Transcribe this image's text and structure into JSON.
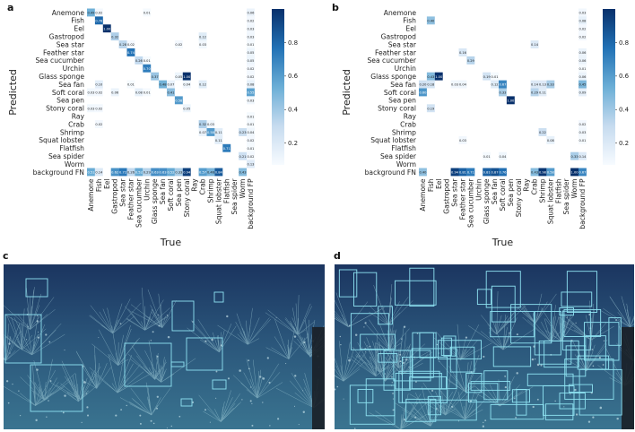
{
  "panels": {
    "a": "a",
    "b": "b",
    "c": "c",
    "d": "d"
  },
  "chart_data": [
    {
      "type": "heatmap",
      "panel": "a",
      "xlabel": "True",
      "ylabel": "Predicted",
      "row_labels": [
        "Anemone",
        "Fish",
        "Eel",
        "Gastropod",
        "Sea star",
        "Feather star",
        "Sea cucumber",
        "Urchin",
        "Glass sponge",
        "Sea fan",
        "Soft coral",
        "Sea pen",
        "Stony coral",
        "Ray",
        "Crab",
        "Shrimp",
        "Squat lobster",
        "Flatfish",
        "Sea spider",
        "Worm",
        "background FN"
      ],
      "col_labels": [
        "Anemone",
        "Fish",
        "Eel",
        "Gastropod",
        "Sea star",
        "Feather star",
        "Sea cucumber",
        "Urchin",
        "Glass sponge",
        "Sea fan",
        "Soft coral",
        "Sea pen",
        "Stony coral",
        "Ray",
        "Crab",
        "Shrimp",
        "Squat lobster",
        "Flatfish",
        "Sea spider",
        "Worm",
        "background FP"
      ],
      "colorbar_ticks": [
        0.2,
        0.4,
        0.6,
        0.8
      ],
      "colorscale": [
        "#f7fbff",
        "#08306b"
      ],
      "cells": [
        [
          0,
          0,
          0.49
        ],
        [
          0,
          1,
          0.02
        ],
        [
          0,
          7,
          0.01
        ],
        [
          0,
          20,
          0.06
        ],
        [
          1,
          1,
          0.78
        ],
        [
          1,
          20,
          0.02
        ],
        [
          2,
          2,
          1.0
        ],
        [
          2,
          20,
          0.03
        ],
        [
          3,
          3,
          0.32
        ],
        [
          3,
          14,
          0.12
        ],
        [
          3,
          20,
          0.03
        ],
        [
          4,
          4,
          0.28
        ],
        [
          4,
          5,
          0.02
        ],
        [
          4,
          11,
          0.02
        ],
        [
          4,
          14,
          0.03
        ],
        [
          4,
          20,
          0.01
        ],
        [
          5,
          5,
          0.74
        ],
        [
          5,
          20,
          0.05
        ],
        [
          6,
          6,
          0.26
        ],
        [
          6,
          7,
          0.01
        ],
        [
          6,
          20,
          0.05
        ],
        [
          7,
          7,
          0.7
        ],
        [
          7,
          20,
          0.02
        ],
        [
          8,
          8,
          0.37
        ],
        [
          8,
          11,
          0.05
        ],
        [
          8,
          12,
          1.0
        ],
        [
          8,
          20,
          0.02
        ],
        [
          9,
          1,
          0.1
        ],
        [
          9,
          5,
          0.01
        ],
        [
          9,
          9,
          0.48
        ],
        [
          9,
          10,
          0.07
        ],
        [
          9,
          12,
          0.04
        ],
        [
          9,
          14,
          0.12
        ],
        [
          9,
          20,
          0.08
        ],
        [
          10,
          0,
          0.03
        ],
        [
          10,
          1,
          0.02
        ],
        [
          10,
          3,
          0.06
        ],
        [
          10,
          6,
          0.08
        ],
        [
          10,
          7,
          0.01
        ],
        [
          10,
          10,
          0.41
        ],
        [
          10,
          20,
          0.55
        ],
        [
          11,
          11,
          0.58
        ],
        [
          11,
          20,
          0.03
        ],
        [
          12,
          0,
          0.03
        ],
        [
          12,
          1,
          0.02
        ],
        [
          12,
          12,
          0.05
        ],
        [
          13,
          20,
          0.01
        ],
        [
          14,
          1,
          0.02
        ],
        [
          14,
          14,
          0.32
        ],
        [
          14,
          15,
          0.03
        ],
        [
          14,
          20,
          0.01
        ],
        [
          15,
          14,
          0.07
        ],
        [
          15,
          15,
          0.58
        ],
        [
          15,
          16,
          0.11
        ],
        [
          15,
          19,
          0.23
        ],
        [
          15,
          20,
          0.04
        ],
        [
          16,
          16,
          0.11
        ],
        [
          16,
          20,
          0.02
        ],
        [
          17,
          17,
          0.71
        ],
        [
          17,
          20,
          0.01
        ],
        [
          18,
          19,
          0.21
        ],
        [
          18,
          20,
          0.02
        ],
        [
          19,
          20,
          0.13
        ],
        [
          20,
          0,
          0.51
        ],
        [
          20,
          1,
          0.14
        ],
        [
          20,
          3,
          0.62
        ],
        [
          20,
          4,
          0.72
        ],
        [
          20,
          5,
          0.26
        ],
        [
          20,
          6,
          0.52
        ],
        [
          20,
          7,
          0.29
        ],
        [
          20,
          8,
          0.63
        ],
        [
          20,
          9,
          0.63
        ],
        [
          20,
          10,
          0.52
        ],
        [
          20,
          11,
          0.33
        ],
        [
          20,
          12,
          0.94
        ],
        [
          20,
          14,
          0.57
        ],
        [
          20,
          15,
          0.46
        ],
        [
          20,
          16,
          0.84
        ],
        [
          20,
          19,
          0.43
        ]
      ]
    },
    {
      "type": "heatmap",
      "panel": "b",
      "xlabel": "True",
      "ylabel": "Predicted",
      "row_labels": [
        "Anemone",
        "Fish",
        "Eel",
        "Gastropod",
        "Sea star",
        "Feather star",
        "Sea cucumber",
        "Urchin",
        "Glass sponge",
        "Sea fan",
        "Soft coral",
        "Sea pen",
        "Stony coral",
        "Ray",
        "Crab",
        "Shrimp",
        "Squat lobster",
        "Flatfish",
        "Sea spider",
        "Worm",
        "background FN"
      ],
      "col_labels": [
        "Anemone",
        "Fish",
        "Eel",
        "Gastropod",
        "Sea star",
        "Feather star",
        "Sea cucumber",
        "Urchin",
        "Glass sponge",
        "Sea fan",
        "Soft coral",
        "Sea pen",
        "Stony coral",
        "Ray",
        "Crab",
        "Shrimp",
        "Squat lobster",
        "Flatfish",
        "Sea spider",
        "Worm",
        "background FP"
      ],
      "colorbar_ticks": [
        0.2,
        0.4,
        0.6,
        0.8
      ],
      "colorscale": [
        "#f7fbff",
        "#08306b"
      ],
      "cells": [
        [
          0,
          20,
          0.03
        ],
        [
          1,
          1,
          0.4
        ],
        [
          1,
          20,
          0.08
        ],
        [
          2,
          20,
          0.02
        ],
        [
          3,
          20,
          0.02
        ],
        [
          4,
          14,
          0.14
        ],
        [
          5,
          5,
          0.16
        ],
        [
          5,
          20,
          0.06
        ],
        [
          6,
          6,
          0.29
        ],
        [
          6,
          20,
          0.06
        ],
        [
          7,
          20,
          0.01
        ],
        [
          8,
          1,
          0.43
        ],
        [
          8,
          2,
          1.0
        ],
        [
          8,
          8,
          0.19
        ],
        [
          8,
          9,
          0.01
        ],
        [
          8,
          20,
          0.06
        ],
        [
          9,
          0,
          0.2
        ],
        [
          9,
          1,
          0.18
        ],
        [
          9,
          4,
          0.03
        ],
        [
          9,
          5,
          0.04
        ],
        [
          9,
          9,
          0.12
        ],
        [
          9,
          10,
          0.67
        ],
        [
          9,
          14,
          0.14
        ],
        [
          9,
          15,
          0.13
        ],
        [
          9,
          16,
          0.33
        ],
        [
          9,
          20,
          0.45
        ],
        [
          10,
          0,
          0.6
        ],
        [
          10,
          10,
          0.33
        ],
        [
          10,
          14,
          0.29
        ],
        [
          10,
          15,
          0.11
        ],
        [
          10,
          20,
          0.09
        ],
        [
          11,
          11,
          1.0
        ],
        [
          12,
          1,
          0.19
        ],
        [
          14,
          20,
          0.02
        ],
        [
          15,
          15,
          0.22
        ],
        [
          15,
          20,
          0.03
        ],
        [
          16,
          5,
          0.03
        ],
        [
          16,
          16,
          0.08
        ],
        [
          16,
          20,
          0.01
        ],
        [
          18,
          8,
          0.01
        ],
        [
          18,
          10,
          0.04
        ],
        [
          18,
          19,
          0.33
        ],
        [
          18,
          20,
          0.14
        ],
        [
          20,
          0,
          0.4
        ],
        [
          20,
          4,
          0.94
        ],
        [
          20,
          5,
          0.81
        ],
        [
          20,
          6,
          0.71
        ],
        [
          20,
          8,
          0.81
        ],
        [
          20,
          9,
          0.87
        ],
        [
          20,
          10,
          0.76
        ],
        [
          20,
          14,
          0.43
        ],
        [
          20,
          15,
          0.98
        ],
        [
          20,
          16,
          0.58
        ],
        [
          20,
          19,
          1.0
        ],
        [
          20,
          20,
          0.67
        ]
      ]
    }
  ],
  "photos": {
    "left_boxes": 10,
    "right_boxes": 60,
    "water_colors": [
      "#1f3b63",
      "#2c5a7e",
      "#3f7d96"
    ],
    "box_color": "#8fe3f2"
  }
}
